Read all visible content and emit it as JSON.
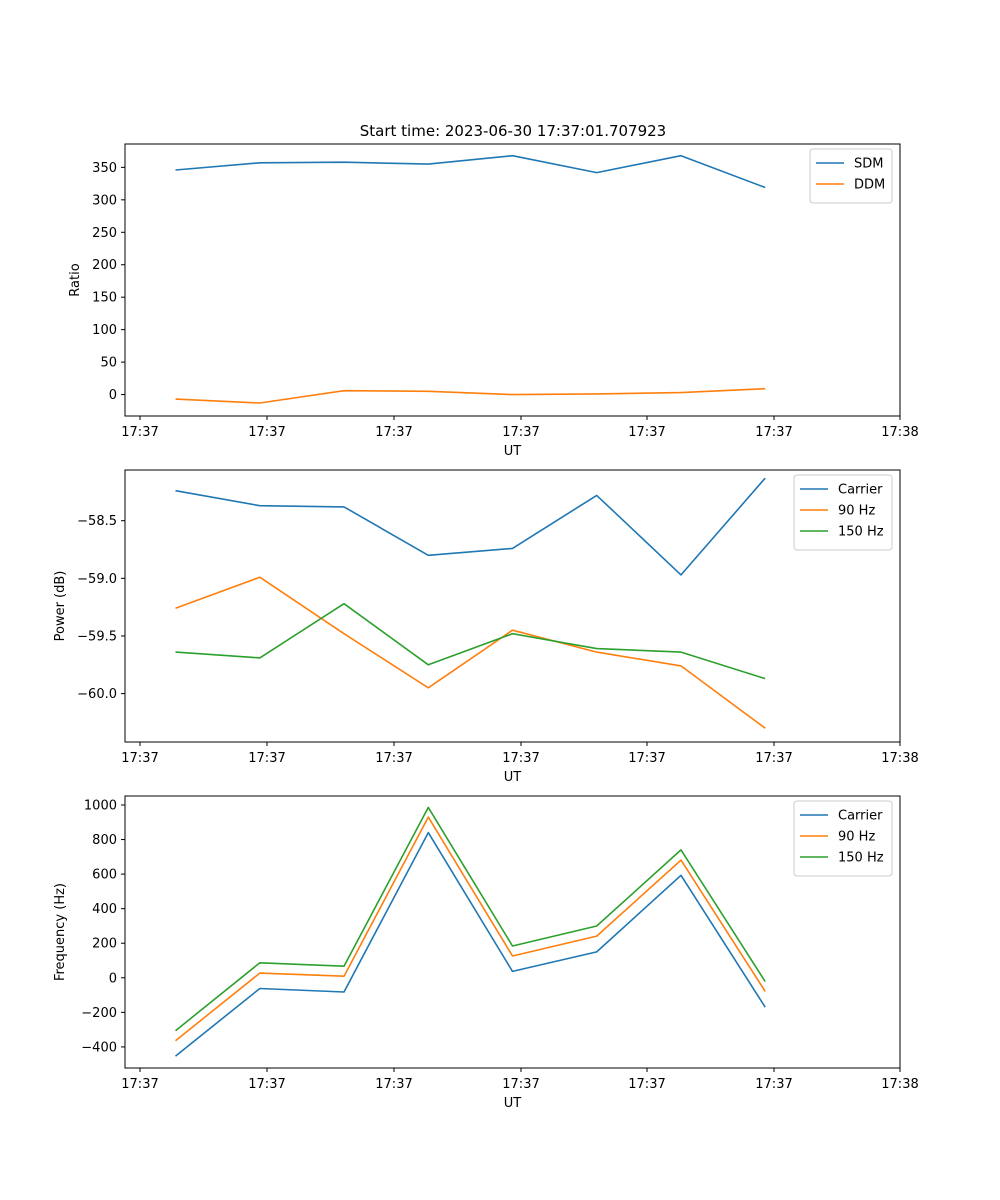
{
  "title": "Start time: 2023-06-30 17:37:01.707923",
  "chart_data": [
    {
      "type": "line",
      "title": "Start time: 2023-06-30 17:37:01.707923",
      "xlabel": "UT",
      "ylabel": "Ratio",
      "x_ticks": [
        "17:37",
        "17:37",
        "17:37",
        "17:37",
        "17:37",
        "17:37",
        "17:38"
      ],
      "xlim": [
        -0.6,
        8.6
      ],
      "ylim": [
        -33,
        386
      ],
      "y_ticks": [
        0,
        50,
        100,
        150,
        200,
        250,
        300,
        350
      ],
      "y_tick_labels": [
        "0",
        "50",
        "100",
        "150",
        "200",
        "250",
        "300",
        "350"
      ],
      "legend_position": "top-right",
      "grid": false,
      "x": [
        0,
        1,
        2,
        3,
        4,
        5,
        6,
        7
      ],
      "series": [
        {
          "name": "SDM",
          "color": "#1f77b4",
          "values": [
            346,
            357,
            358,
            355,
            368,
            342,
            368,
            319
          ]
        },
        {
          "name": "DDM",
          "color": "#ff7f0e",
          "values": [
            -7,
            -13,
            6,
            5,
            0,
            1,
            3,
            9
          ]
        }
      ]
    },
    {
      "type": "line",
      "title": "",
      "xlabel": "UT",
      "ylabel": "Power (dB)",
      "x_ticks": [
        "17:37",
        "17:37",
        "17:37",
        "17:37",
        "17:37",
        "17:37",
        "17:38"
      ],
      "xlim": [
        -0.6,
        8.6
      ],
      "ylim": [
        -60.42,
        -58.06
      ],
      "y_ticks": [
        -60.0,
        -59.5,
        -59.0,
        -58.5
      ],
      "y_tick_labels": [
        "−60.0",
        "−59.5",
        "−59.0",
        "−58.5"
      ],
      "legend_position": "top-right",
      "grid": false,
      "x": [
        0,
        1,
        2,
        3,
        4,
        5,
        6,
        7
      ],
      "series": [
        {
          "name": "Carrier",
          "color": "#1f77b4",
          "values": [
            -58.24,
            -58.37,
            -58.38,
            -58.8,
            -58.74,
            -58.28,
            -58.97,
            -58.13
          ]
        },
        {
          "name": "90 Hz",
          "color": "#ff7f0e",
          "values": [
            -59.26,
            -58.99,
            -59.48,
            -59.95,
            -59.45,
            -59.64,
            -59.76,
            -60.3
          ]
        },
        {
          "name": "150 Hz",
          "color": "#2ca02c",
          "values": [
            -59.64,
            -59.69,
            -59.22,
            -59.75,
            -59.48,
            -59.61,
            -59.64,
            -59.87
          ]
        }
      ]
    },
    {
      "type": "line",
      "title": "",
      "xlabel": "UT",
      "ylabel": "Frequency (Hz)",
      "x_ticks": [
        "17:37",
        "17:37",
        "17:37",
        "17:37",
        "17:37",
        "17:37",
        "17:38"
      ],
      "xlim": [
        -0.6,
        8.6
      ],
      "ylim": [
        -522,
        1052
      ],
      "y_ticks": [
        -400,
        -200,
        0,
        200,
        400,
        600,
        800,
        1000
      ],
      "y_tick_labels": [
        "−400",
        "−200",
        "0",
        "200",
        "400",
        "600",
        "800",
        "1000"
      ],
      "legend_position": "top-right",
      "grid": false,
      "x": [
        0,
        1,
        2,
        3,
        4,
        5,
        6,
        7
      ],
      "series": [
        {
          "name": "Carrier",
          "color": "#1f77b4",
          "values": [
            -453,
            -62,
            -82,
            840,
            37,
            150,
            593,
            -170
          ]
        },
        {
          "name": "90 Hz",
          "color": "#ff7f0e",
          "values": [
            -364,
            27,
            9,
            930,
            126,
            241,
            681,
            -79
          ]
        },
        {
          "name": "150 Hz",
          "color": "#2ca02c",
          "values": [
            -306,
            87,
            67,
            986,
            184,
            300,
            740,
            -22
          ]
        }
      ]
    }
  ]
}
